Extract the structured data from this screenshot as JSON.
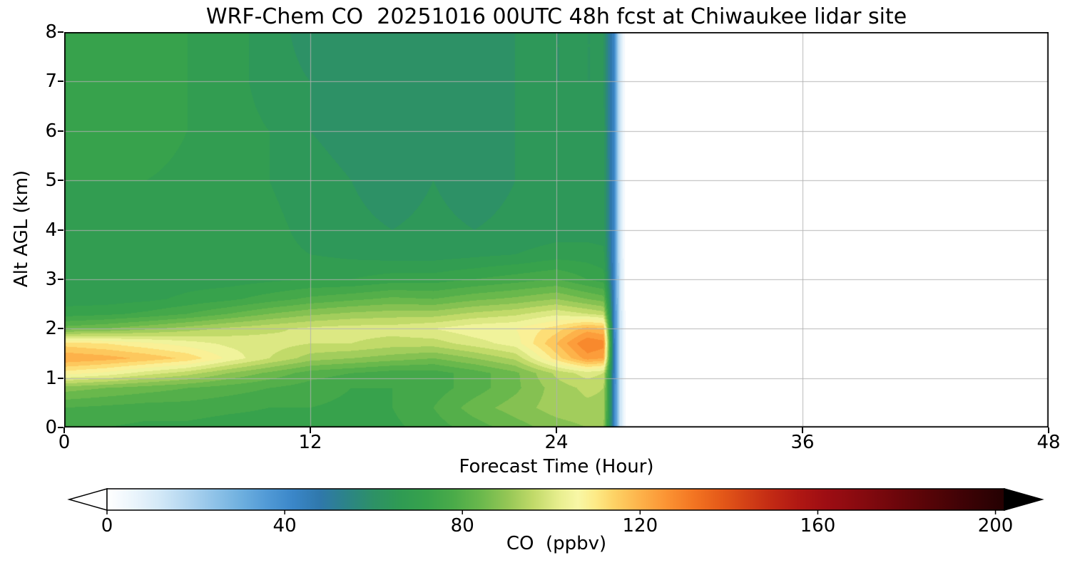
{
  "chart_data": {
    "type": "heatmap",
    "title": "WRF-Chem CO  20251016 00UTC 48h fcst at Chiwaukee lidar site",
    "xlabel": "Forecast Time (Hour)",
    "ylabel": "Alt AGL (km)",
    "xlim": [
      0,
      48
    ],
    "ylim": [
      0,
      8
    ],
    "xticks": [
      0,
      12,
      24,
      36,
      48
    ],
    "yticks": [
      0,
      1,
      2,
      3,
      4,
      5,
      6,
      7,
      8
    ],
    "grid_on": true,
    "grid_color": "#b0b0b0",
    "colorbar": {
      "label": "CO  (ppbv)",
      "ticks": [
        0,
        40,
        80,
        120,
        160,
        200
      ],
      "vmin": 0,
      "vmax": 202,
      "extend": "both",
      "under_color": "#ffffff",
      "over_color": "#000000"
    },
    "colormap": [
      [
        0,
        "#ffffff"
      ],
      [
        6,
        "#ebf5fc"
      ],
      [
        12,
        "#d2e8f7"
      ],
      [
        18,
        "#b2d6f0"
      ],
      [
        24,
        "#90c3e8"
      ],
      [
        30,
        "#6fb0df"
      ],
      [
        36,
        "#519ad6"
      ],
      [
        42,
        "#3a86c8"
      ],
      [
        48,
        "#2f78ab"
      ],
      [
        54,
        "#2c8487"
      ],
      [
        60,
        "#2d9166"
      ],
      [
        66,
        "#2f9b53"
      ],
      [
        72,
        "#37a24c"
      ],
      [
        78,
        "#4aab49"
      ],
      [
        84,
        "#69b84c"
      ],
      [
        90,
        "#93c655"
      ],
      [
        96,
        "#c1da69"
      ],
      [
        102,
        "#e9ef90"
      ],
      [
        106,
        "#f8f7a6"
      ],
      [
        110,
        "#fdea86"
      ],
      [
        114,
        "#fdd366"
      ],
      [
        120,
        "#fdb24a"
      ],
      [
        126,
        "#fb9333"
      ],
      [
        132,
        "#f37522"
      ],
      [
        138,
        "#e55a19"
      ],
      [
        144,
        "#d34016"
      ],
      [
        150,
        "#c12814"
      ],
      [
        156,
        "#af1713"
      ],
      [
        162,
        "#9d0d13"
      ],
      [
        170,
        "#860a0f"
      ],
      [
        178,
        "#6c060b"
      ],
      [
        186,
        "#530407"
      ],
      [
        194,
        "#3b0205"
      ],
      [
        202,
        "#240102"
      ],
      [
        210,
        "#000000"
      ]
    ],
    "heatmap": {
      "note": "CO ppbv on time-altitude grid; forecast field ends near hour 26.5, white (no data) after",
      "level_step": 4,
      "no_data_after_hour": 27.4,
      "hours": [
        0,
        2,
        4,
        6,
        8,
        10,
        12,
        14,
        16,
        18,
        20,
        22,
        24,
        25.5,
        26.3,
        26.8,
        27.1,
        27.4
      ],
      "altitudes_km": [
        0,
        0.4,
        0.8,
        1.1,
        1.4,
        1.7,
        2.0,
        2.3,
        2.6,
        3.0,
        3.5,
        4.0,
        5.0,
        6.0,
        7.0,
        8.0
      ],
      "values": [
        [
          74,
          74,
          73,
          73,
          72,
          72,
          72,
          72,
          73,
          76,
          80,
          84,
          88,
          90,
          90,
          45,
          14,
          0
        ],
        [
          78,
          77,
          76,
          76,
          75,
          74,
          74,
          73,
          74,
          78,
          84,
          88,
          92,
          93,
          93,
          45,
          14,
          0
        ],
        [
          88,
          86,
          84,
          82,
          80,
          78,
          76,
          74,
          74,
          76,
          80,
          85,
          92,
          95,
          94,
          45,
          14,
          0
        ],
        [
          108,
          105,
          100,
          96,
          90,
          85,
          80,
          78,
          76,
          76,
          80,
          85,
          95,
          100,
          98,
          46,
          14,
          0
        ],
        [
          122,
          120,
          117,
          113,
          105,
          98,
          92,
          90,
          88,
          86,
          90,
          95,
          112,
          124,
          122,
          46,
          14,
          0
        ],
        [
          112,
          110,
          107,
          104,
          101,
          100,
          98,
          98,
          96,
          96,
          100,
          104,
          118,
          130,
          128,
          46,
          14,
          0
        ],
        [
          84,
          86,
          89,
          92,
          95,
          97,
          99,
          100,
          100,
          102,
          105,
          106,
          112,
          120,
          118,
          45,
          14,
          0
        ],
        [
          72,
          73,
          75,
          78,
          82,
          86,
          89,
          91,
          92,
          92,
          95,
          97,
          101,
          98,
          96,
          45,
          14,
          0
        ],
        [
          68,
          68,
          69,
          71,
          73,
          76,
          79,
          81,
          83,
          82,
          85,
          87,
          90,
          86,
          84,
          44,
          13,
          0
        ],
        [
          67,
          67,
          67,
          68,
          68,
          69,
          70,
          70,
          72,
          72,
          74,
          76,
          78,
          74,
          72,
          43,
          13,
          0
        ],
        [
          68,
          68,
          68,
          68,
          68,
          67,
          66,
          65,
          64,
          64,
          65,
          66,
          68,
          68,
          67,
          42,
          12,
          0
        ],
        [
          68,
          68,
          69,
          69,
          68,
          67,
          65,
          63,
          62,
          63,
          62,
          63,
          64,
          64,
          64,
          42,
          12,
          0
        ],
        [
          70,
          70,
          70,
          69,
          68,
          66,
          64,
          62,
          60,
          62,
          60,
          62,
          63,
          64,
          64,
          42,
          12,
          0
        ],
        [
          72,
          72,
          72,
          70,
          68,
          66,
          62,
          60,
          58,
          60,
          62,
          62,
          63,
          63,
          63,
          42,
          12,
          0
        ],
        [
          72,
          73,
          72,
          70,
          68,
          64,
          62,
          58,
          58,
          60,
          60,
          62,
          62,
          62,
          62,
          42,
          12,
          0
        ],
        [
          70,
          72,
          72,
          70,
          68,
          64,
          60,
          58,
          60,
          58,
          60,
          62,
          62,
          62,
          62,
          42,
          12,
          0
        ]
      ]
    }
  }
}
